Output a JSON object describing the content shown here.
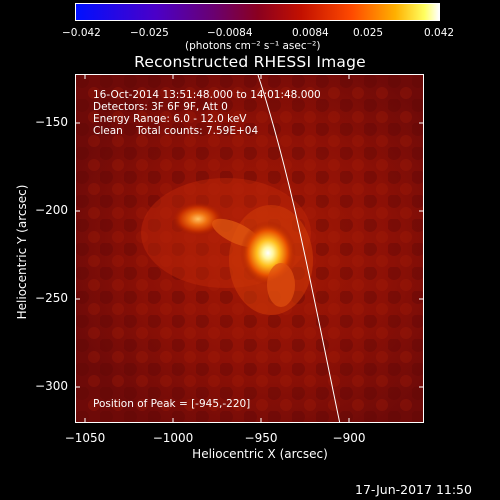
{
  "colorbar": {
    "ticks": [
      "−0.042",
      "−0.025",
      "−0.0084",
      "0.0084",
      "0.025",
      "0.042"
    ],
    "unit": "(photons cm⁻² s⁻¹ asec⁻²)"
  },
  "title": "Reconstructed RHESSI Image",
  "info": {
    "time_range": "16-Oct-2014 13:51:48.000 to 14:01:48.000",
    "detectors": "Detectors: 3F 6F 9F, Att 0",
    "energy": "Energy Range: 6.0 - 12.0 keV",
    "clean": "Clean    Total counts: 7.59E+04",
    "peak": "Position of Peak = [-945,-220]"
  },
  "axes": {
    "x_label": "Heliocentric X (arcsec)",
    "y_label": "Heliocentric Y (arcsec)",
    "x_ticks": [
      "−1050",
      "−1000",
      "−950",
      "−900"
    ],
    "y_ticks": [
      "−150",
      "−200",
      "−250",
      "−300"
    ]
  },
  "timestamp": "17-Jun-2017 11:50",
  "colors": {
    "background": "#000000",
    "limb": "#ffffff",
    "map_base": "#8a0e05"
  }
}
